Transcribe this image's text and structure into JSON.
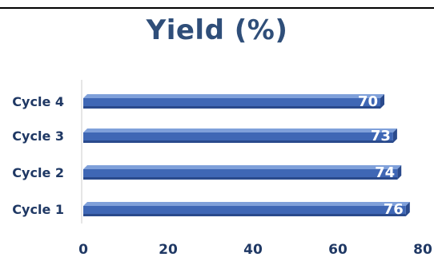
{
  "chart_data": {
    "type": "bar",
    "orientation": "horizontal",
    "title": "Yield (%)",
    "categories": [
      "Cycle 1",
      "Cycle 2",
      "Cycle 3",
      "Cycle 4"
    ],
    "values": [
      76,
      74,
      73,
      70
    ],
    "data_labels": [
      "76",
      "74",
      "73",
      "70"
    ],
    "xlim": [
      0,
      80
    ],
    "x_ticks": [
      0,
      20,
      40,
      60,
      80
    ],
    "x_tick_labels": [
      "0",
      "20",
      "40",
      "60",
      "80"
    ],
    "grid": false,
    "legend": "none",
    "colors": {
      "bar_top": "#7FA0DA",
      "bar_face": "#3F67B5",
      "bar_bottom": "#2A4A8C",
      "text": "#1F3864",
      "title": "#2F4E79"
    }
  }
}
